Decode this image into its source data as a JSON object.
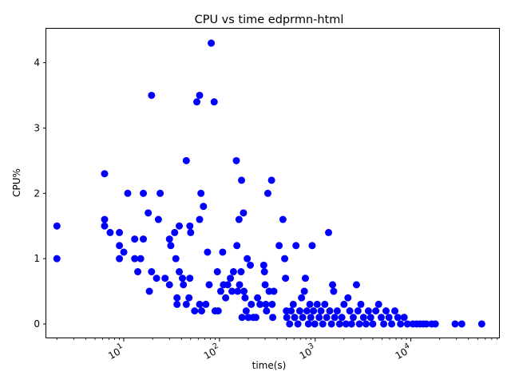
{
  "chart_data": {
    "type": "scatter",
    "title": "CPU vs time edprmn-html",
    "xlabel": "time(s)",
    "ylabel": "CPU%",
    "x_scale": "log",
    "xlim": [
      1.55,
      85000
    ],
    "ylim": [
      -0.22,
      4.52
    ],
    "marker_color": "#0000ff",
    "grid": false,
    "x_ticks": [
      {
        "value": 10,
        "base": "10",
        "exp": "1"
      },
      {
        "value": 100,
        "base": "10",
        "exp": "2"
      },
      {
        "value": 1000,
        "base": "10",
        "exp": "3"
      },
      {
        "value": 10000,
        "base": "10",
        "exp": "4"
      }
    ],
    "y_ticks": [
      {
        "value": 0,
        "label": "0"
      },
      {
        "value": 1,
        "label": "1"
      },
      {
        "value": 2,
        "label": "2"
      },
      {
        "value": 3,
        "label": "3"
      },
      {
        "value": 4,
        "label": "4"
      }
    ],
    "points": [
      [
        2,
        1.5
      ],
      [
        2,
        1.0
      ],
      [
        6.3,
        2.3
      ],
      [
        6.3,
        1.6
      ],
      [
        6.3,
        1.5
      ],
      [
        7.2,
        1.4
      ],
      [
        9,
        1.4
      ],
      [
        9,
        1.2
      ],
      [
        9,
        1.0
      ],
      [
        10,
        1.1
      ],
      [
        11,
        2.0
      ],
      [
        13,
        1.3
      ],
      [
        13,
        1.0
      ],
      [
        14,
        0.8
      ],
      [
        15,
        1.0
      ],
      [
        16,
        2.0
      ],
      [
        16,
        1.3
      ],
      [
        18,
        1.7
      ],
      [
        18.5,
        0.5
      ],
      [
        19.5,
        3.5
      ],
      [
        19.5,
        0.8
      ],
      [
        22,
        0.7
      ],
      [
        24,
        2.0
      ],
      [
        23,
        1.6
      ],
      [
        27,
        0.7
      ],
      [
        30,
        1.3
      ],
      [
        31,
        1.2
      ],
      [
        30,
        0.6
      ],
      [
        34,
        1.4
      ],
      [
        35,
        1.0
      ],
      [
        36,
        0.4
      ],
      [
        36,
        0.3
      ],
      [
        38,
        1.5
      ],
      [
        38,
        0.8
      ],
      [
        41,
        0.7
      ],
      [
        42,
        0.6
      ],
      [
        45,
        2.5
      ],
      [
        45,
        0.3
      ],
      [
        48,
        0.4
      ],
      [
        49,
        1.5
      ],
      [
        50,
        1.4
      ],
      [
        49,
        0.7
      ],
      [
        55,
        0.2
      ],
      [
        58,
        3.4
      ],
      [
        62,
        3.5
      ],
      [
        62,
        1.6
      ],
      [
        62,
        0.3
      ],
      [
        64,
        2.0
      ],
      [
        68,
        1.8
      ],
      [
        65,
        0.2
      ],
      [
        72,
        0.3
      ],
      [
        75,
        1.1
      ],
      [
        78,
        0.6
      ],
      [
        82,
        4.3
      ],
      [
        88,
        3.4
      ],
      [
        90,
        0.2
      ],
      [
        95,
        0.8
      ],
      [
        97,
        0.2
      ],
      [
        103,
        0.5
      ],
      [
        108,
        1.1
      ],
      [
        110,
        0.6
      ],
      [
        116,
        0.4
      ],
      [
        122,
        0.6
      ],
      [
        130,
        0.7
      ],
      [
        135,
        0.5
      ],
      [
        140,
        0.8
      ],
      [
        150,
        2.5
      ],
      [
        152,
        1.2
      ],
      [
        155,
        0.5
      ],
      [
        160,
        1.6
      ],
      [
        162,
        0.6
      ],
      [
        168,
        0.8
      ],
      [
        170,
        2.2
      ],
      [
        172,
        0.1
      ],
      [
        178,
        1.7
      ],
      [
        180,
        0.5
      ],
      [
        185,
        0.4
      ],
      [
        190,
        0.2
      ],
      [
        195,
        1.0
      ],
      [
        200,
        0.1
      ],
      [
        210,
        0.9
      ],
      [
        215,
        0.3
      ],
      [
        225,
        0.1
      ],
      [
        240,
        0.1
      ],
      [
        250,
        0.4
      ],
      [
        265,
        0.3
      ],
      [
        290,
        0.9
      ],
      [
        295,
        0.8
      ],
      [
        300,
        0.6
      ],
      [
        305,
        0.3
      ],
      [
        310,
        0.2
      ],
      [
        320,
        2.0
      ],
      [
        330,
        0.5
      ],
      [
        350,
        2.2
      ],
      [
        355,
        0.3
      ],
      [
        360,
        0.1
      ],
      [
        370,
        0.5
      ],
      [
        420,
        1.2
      ],
      [
        460,
        1.6
      ],
      [
        480,
        1.0
      ],
      [
        490,
        0.7
      ],
      [
        500,
        0.2
      ],
      [
        505,
        0.1
      ],
      [
        540,
        0.0
      ],
      [
        560,
        0.2
      ],
      [
        590,
        0.3
      ],
      [
        610,
        0.1
      ],
      [
        630,
        1.2
      ],
      [
        660,
        0.0
      ],
      [
        690,
        0.2
      ],
      [
        720,
        0.4
      ],
      [
        740,
        0.1
      ],
      [
        770,
        0.5
      ],
      [
        790,
        0.7
      ],
      [
        820,
        0.2
      ],
      [
        850,
        0.0
      ],
      [
        880,
        0.3
      ],
      [
        900,
        0.1
      ],
      [
        930,
        1.2
      ],
      [
        960,
        0.2
      ],
      [
        990,
        0.0
      ],
      [
        1050,
        0.3
      ],
      [
        1100,
        0.1
      ],
      [
        1150,
        0.2
      ],
      [
        1200,
        0.0
      ],
      [
        1260,
        0.3
      ],
      [
        1320,
        0.1
      ],
      [
        1380,
        1.4
      ],
      [
        1420,
        0.2
      ],
      [
        1480,
        0.0
      ],
      [
        1520,
        0.6
      ],
      [
        1560,
        0.5
      ],
      [
        1600,
        0.1
      ],
      [
        1700,
        0.2
      ],
      [
        1800,
        0.0
      ],
      [
        1900,
        0.1
      ],
      [
        2000,
        0.3
      ],
      [
        2100,
        0.0
      ],
      [
        2200,
        0.4
      ],
      [
        2300,
        0.2
      ],
      [
        2400,
        0.0
      ],
      [
        2500,
        0.1
      ],
      [
        2700,
        0.6
      ],
      [
        2800,
        0.2
      ],
      [
        2900,
        0.0
      ],
      [
        3000,
        0.3
      ],
      [
        3200,
        0.1
      ],
      [
        3400,
        0.0
      ],
      [
        3600,
        0.2
      ],
      [
        3800,
        0.1
      ],
      [
        4000,
        0.0
      ],
      [
        4300,
        0.2
      ],
      [
        4600,
        0.3
      ],
      [
        4900,
        0.1
      ],
      [
        5200,
        0.0
      ],
      [
        5500,
        0.2
      ],
      [
        5900,
        0.1
      ],
      [
        6300,
        0.0
      ],
      [
        6800,
        0.2
      ],
      [
        7300,
        0.1
      ],
      [
        7800,
        0.0
      ],
      [
        8500,
        0.1
      ],
      [
        9200,
        0.0
      ],
      [
        10500,
        0.0
      ],
      [
        11500,
        0.0
      ],
      [
        12500,
        0.0
      ],
      [
        13500,
        0.0
      ],
      [
        14500,
        0.0
      ],
      [
        16500,
        0.0
      ],
      [
        18000,
        0.0
      ],
      [
        29000,
        0.0
      ],
      [
        34000,
        0.0
      ],
      [
        55000,
        0.0
      ]
    ]
  }
}
